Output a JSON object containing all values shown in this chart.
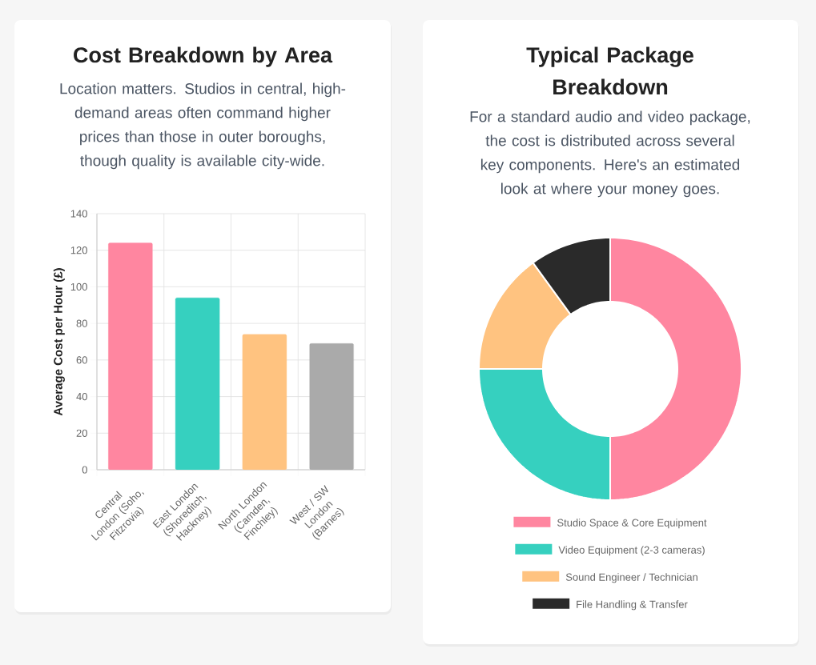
{
  "chart_data": [
    {
      "type": "bar",
      "title": "Cost Breakdown by Area",
      "subtitle": "Location matters. Studios in central, high-demand areas often command higher prices than those in outer boroughs, though quality is available city-wide.",
      "ylabel": "Average Cost per Hour (£)",
      "categories": [
        "Central London (Soho, Fitzrovia)",
        "East London (Shoreditch, Hackney)",
        "North London (Camden, Finchley)",
        "West / SW London (Barnes)"
      ],
      "values": [
        124,
        94,
        74,
        69
      ],
      "colors": [
        "#ff86a0",
        "#36d0bf",
        "#ffc380",
        "#aaaaaa"
      ],
      "ylim": [
        0,
        140
      ],
      "yticks": [
        0,
        20,
        40,
        60,
        80,
        100,
        120,
        140
      ],
      "grid": true
    },
    {
      "type": "donut",
      "title": "Typical Package Breakdown",
      "subtitle": "For a standard audio and video package, the cost is distributed across several key components. Here's an estimated look at where your money goes.",
      "categories": [
        "Studio Space & Core Equipment",
        "Video Equipment (2-3 cameras)",
        "Sound Engineer / Technician",
        "File Handling & Transfer"
      ],
      "values": [
        50,
        25,
        15,
        10
      ],
      "colors": [
        "#ff86a0",
        "#36d0bf",
        "#ffc380",
        "#2a2a2a"
      ],
      "legend": "bottom"
    }
  ]
}
